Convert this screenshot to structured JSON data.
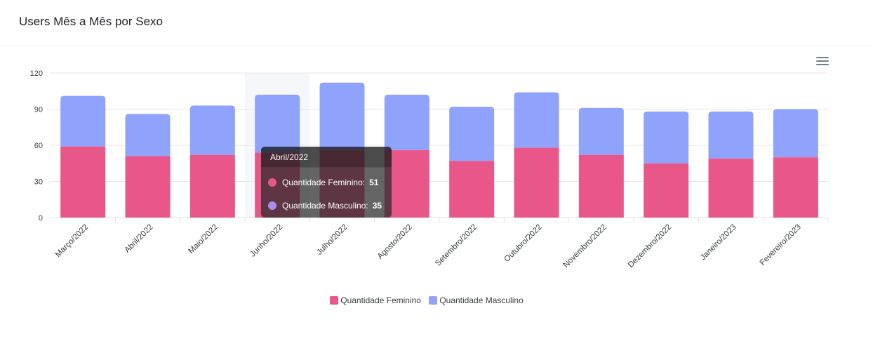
{
  "header": {
    "title": "Users Mês a Mês por Sexo"
  },
  "toolbar": {
    "menu_icon": "hamburger-menu-icon"
  },
  "colors": {
    "feminino": "#e9578a",
    "masculino": "#8fa3fd"
  },
  "chart_data": {
    "type": "bar",
    "stacked": true,
    "categories": [
      "Março/2022",
      "Abril/2022",
      "Maio/2022",
      "Junho/2022",
      "Julho/2022",
      "Agosto/2022",
      "Setembro/2022",
      "Outubro/2022",
      "Novembro/2022",
      "Dezembro/2022",
      "Janeiro/2023",
      "Fevereiro/2023"
    ],
    "series": [
      {
        "name": "Quantidade Feminino",
        "values": [
          59,
          51,
          52,
          54,
          56,
          56,
          47,
          58,
          52,
          45,
          49,
          50
        ]
      },
      {
        "name": "Quantidade Masculino",
        "values": [
          42,
          35,
          41,
          48,
          56,
          46,
          45,
          46,
          39,
          43,
          39,
          40
        ]
      }
    ],
    "y_ticks": [
      "0",
      "30",
      "60",
      "90",
      "120"
    ],
    "ylim": [
      0,
      120
    ],
    "grid": true,
    "legend": "bottom-center"
  },
  "tooltip": {
    "title": "Abril/2022",
    "rows": [
      {
        "label": "Quantidade Feminino:",
        "value": "51"
      },
      {
        "label": "Quantidade Masculino:",
        "value": "35"
      }
    ]
  }
}
